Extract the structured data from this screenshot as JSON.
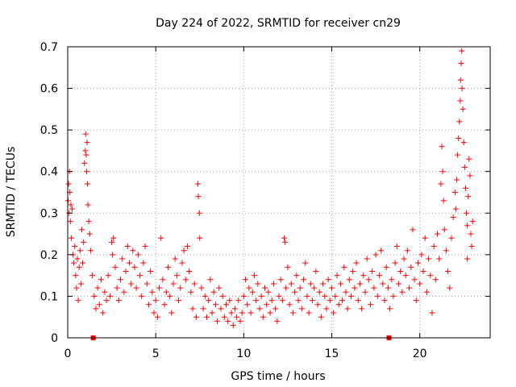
{
  "chart_data": {
    "type": "scatter",
    "title": "Day 224 of 2022, SRMTID for receiver cn29",
    "xlabel": "GPS time / hours",
    "ylabel": "SRMTID / TECUs",
    "xlim": [
      0,
      24
    ],
    "ylim": [
      0,
      0.7
    ],
    "x_ticks": [
      0,
      5,
      10,
      15,
      20
    ],
    "x_tick_labels": [
      "0",
      "5",
      "10",
      "15",
      "20"
    ],
    "y_ticks": [
      0,
      0.1,
      0.2,
      0.3,
      0.4,
      0.5,
      0.6,
      0.7
    ],
    "y_tick_labels": [
      "0",
      "0.1",
      "0.2",
      "0.3",
      "0.4",
      "0.5",
      "0.6",
      "0.7"
    ],
    "grid": true,
    "marker": "+",
    "series": [
      {
        "name": "SRMTID",
        "color": "#ff0000",
        "points": [
          [
            0.02,
            0.33
          ],
          [
            0.05,
            0.37
          ],
          [
            0.08,
            0.3
          ],
          [
            0.1,
            0.4
          ],
          [
            0.12,
            0.35
          ],
          [
            0.15,
            0.28
          ],
          [
            0.18,
            0.32
          ],
          [
            0.2,
            0.24
          ],
          [
            0.25,
            0.31
          ],
          [
            0.3,
            0.2
          ],
          [
            0.35,
            0.18
          ],
          [
            0.4,
            0.22
          ],
          [
            0.45,
            0.15
          ],
          [
            0.5,
            0.12
          ],
          [
            0.55,
            0.19
          ],
          [
            0.6,
            0.09
          ],
          [
            0.65,
            0.17
          ],
          [
            0.7,
            0.21
          ],
          [
            0.75,
            0.13
          ],
          [
            0.8,
            0.26
          ],
          [
            0.85,
            0.18
          ],
          [
            0.9,
            0.23
          ],
          [
            0.95,
            0.42
          ],
          [
            1.0,
            0.45
          ],
          [
            1.02,
            0.49
          ],
          [
            1.05,
            0.44
          ],
          [
            1.08,
            0.4
          ],
          [
            1.1,
            0.47
          ],
          [
            1.12,
            0.37
          ],
          [
            1.15,
            0.32
          ],
          [
            1.2,
            0.28
          ],
          [
            1.25,
            0.25
          ],
          [
            1.3,
            0.21
          ],
          [
            1.4,
            0.15
          ],
          [
            1.5,
            0.1
          ],
          [
            1.6,
            0.07
          ],
          [
            1.7,
            0.12
          ],
          [
            1.8,
            0.08
          ],
          [
            1.9,
            0.14
          ],
          [
            2.0,
            0.06
          ],
          [
            2.1,
            0.11
          ],
          [
            2.2,
            0.09
          ],
          [
            2.3,
            0.15
          ],
          [
            2.4,
            0.1
          ],
          [
            2.5,
            0.23
          ],
          [
            2.55,
            0.2
          ],
          [
            2.6,
            0.24
          ],
          [
            2.7,
            0.17
          ],
          [
            2.8,
            0.12
          ],
          [
            2.9,
            0.09
          ],
          [
            3.0,
            0.14
          ],
          [
            3.1,
            0.19
          ],
          [
            3.2,
            0.11
          ],
          [
            3.3,
            0.16
          ],
          [
            3.4,
            0.22
          ],
          [
            3.5,
            0.18
          ],
          [
            3.6,
            0.13
          ],
          [
            3.7,
            0.21
          ],
          [
            3.8,
            0.17
          ],
          [
            3.9,
            0.12
          ],
          [
            4.0,
            0.2
          ],
          [
            4.1,
            0.15
          ],
          [
            4.2,
            0.1
          ],
          [
            4.3,
            0.18
          ],
          [
            4.4,
            0.22
          ],
          [
            4.5,
            0.13
          ],
          [
            4.6,
            0.08
          ],
          [
            4.7,
            0.16
          ],
          [
            4.8,
            0.11
          ],
          [
            4.9,
            0.06
          ],
          [
            5.0,
            0.09
          ],
          [
            5.1,
            0.05
          ],
          [
            5.2,
            0.12
          ],
          [
            5.3,
            0.24
          ],
          [
            5.4,
            0.14
          ],
          [
            5.5,
            0.08
          ],
          [
            5.6,
            0.11
          ],
          [
            5.7,
            0.17
          ],
          [
            5.8,
            0.1
          ],
          [
            5.9,
            0.06
          ],
          [
            6.0,
            0.13
          ],
          [
            6.1,
            0.19
          ],
          [
            6.2,
            0.15
          ],
          [
            6.3,
            0.09
          ],
          [
            6.4,
            0.12
          ],
          [
            6.5,
            0.18
          ],
          [
            6.6,
            0.21
          ],
          [
            6.7,
            0.14
          ],
          [
            6.8,
            0.22
          ],
          [
            6.9,
            0.16
          ],
          [
            7.0,
            0.11
          ],
          [
            7.1,
            0.07
          ],
          [
            7.2,
            0.13
          ],
          [
            7.3,
            0.05
          ],
          [
            7.4,
            0.37
          ],
          [
            7.42,
            0.34
          ],
          [
            7.48,
            0.3
          ],
          [
            7.5,
            0.24
          ],
          [
            7.6,
            0.12
          ],
          [
            7.7,
            0.07
          ],
          [
            7.8,
            0.1
          ],
          [
            7.9,
            0.05
          ],
          [
            8.0,
            0.09
          ],
          [
            8.1,
            0.14
          ],
          [
            8.2,
            0.06
          ],
          [
            8.3,
            0.11
          ],
          [
            8.4,
            0.08
          ],
          [
            8.5,
            0.04
          ],
          [
            8.6,
            0.12
          ],
          [
            8.7,
            0.07
          ],
          [
            8.8,
            0.1
          ],
          [
            8.9,
            0.05
          ],
          [
            9.0,
            0.08
          ],
          [
            9.1,
            0.04
          ],
          [
            9.2,
            0.09
          ],
          [
            9.3,
            0.06
          ],
          [
            9.4,
            0.03
          ],
          [
            9.5,
            0.07
          ],
          [
            9.6,
            0.05
          ],
          [
            9.7,
            0.09
          ],
          [
            9.8,
            0.04
          ],
          [
            9.9,
            0.06
          ],
          [
            10.0,
            0.1
          ],
          [
            10.1,
            0.14
          ],
          [
            10.2,
            0.08
          ],
          [
            10.3,
            0.12
          ],
          [
            10.4,
            0.06
          ],
          [
            10.5,
            0.11
          ],
          [
            10.6,
            0.15
          ],
          [
            10.7,
            0.09
          ],
          [
            10.8,
            0.13
          ],
          [
            10.9,
            0.07
          ],
          [
            11.0,
            0.1
          ],
          [
            11.1,
            0.05
          ],
          [
            11.2,
            0.12
          ],
          [
            11.3,
            0.08
          ],
          [
            11.4,
            0.11
          ],
          [
            11.5,
            0.06
          ],
          [
            11.6,
            0.09
          ],
          [
            11.7,
            0.13
          ],
          [
            11.8,
            0.07
          ],
          [
            11.9,
            0.04
          ],
          [
            12.0,
            0.1
          ],
          [
            12.1,
            0.14
          ],
          [
            12.2,
            0.09
          ],
          [
            12.3,
            0.24
          ],
          [
            12.35,
            0.23
          ],
          [
            12.4,
            0.12
          ],
          [
            12.5,
            0.17
          ],
          [
            12.6,
            0.08
          ],
          [
            12.7,
            0.13
          ],
          [
            12.8,
            0.06
          ],
          [
            12.9,
            0.11
          ],
          [
            13.0,
            0.15
          ],
          [
            13.1,
            0.09
          ],
          [
            13.2,
            0.12
          ],
          [
            13.3,
            0.07
          ],
          [
            13.4,
            0.14
          ],
          [
            13.5,
            0.18
          ],
          [
            13.6,
            0.1
          ],
          [
            13.7,
            0.06
          ],
          [
            13.8,
            0.13
          ],
          [
            13.9,
            0.09
          ],
          [
            14.0,
            0.12
          ],
          [
            14.1,
            0.16
          ],
          [
            14.2,
            0.08
          ],
          [
            14.3,
            0.11
          ],
          [
            14.4,
            0.05
          ],
          [
            14.5,
            0.13
          ],
          [
            14.6,
            0.1
          ],
          [
            14.7,
            0.07
          ],
          [
            14.8,
            0.14
          ],
          [
            14.9,
            0.09
          ],
          [
            15.0,
            0.12
          ],
          [
            15.1,
            0.06
          ],
          [
            15.2,
            0.1
          ],
          [
            15.3,
            0.15
          ],
          [
            15.4,
            0.08
          ],
          [
            15.5,
            0.13
          ],
          [
            15.6,
            0.09
          ],
          [
            15.7,
            0.17
          ],
          [
            15.8,
            0.11
          ],
          [
            15.9,
            0.07
          ],
          [
            16.0,
            0.14
          ],
          [
            16.1,
            0.1
          ],
          [
            16.2,
            0.16
          ],
          [
            16.3,
            0.12
          ],
          [
            16.4,
            0.18
          ],
          [
            16.5,
            0.09
          ],
          [
            16.6,
            0.13
          ],
          [
            16.7,
            0.07
          ],
          [
            16.8,
            0.15
          ],
          [
            16.9,
            0.11
          ],
          [
            17.0,
            0.19
          ],
          [
            17.1,
            0.14
          ],
          [
            17.2,
            0.08
          ],
          [
            17.3,
            0.16
          ],
          [
            17.4,
            0.12
          ],
          [
            17.5,
            0.2
          ],
          [
            17.6,
            0.1
          ],
          [
            17.7,
            0.15
          ],
          [
            17.8,
            0.21
          ],
          [
            17.9,
            0.13
          ],
          [
            18.0,
            0.09
          ],
          [
            18.1,
            0.17
          ],
          [
            18.2,
            0.12
          ],
          [
            18.3,
            0.07
          ],
          [
            18.4,
            0.14
          ],
          [
            18.5,
            0.1
          ],
          [
            18.6,
            0.18
          ],
          [
            18.7,
            0.22
          ],
          [
            18.8,
            0.13
          ],
          [
            18.9,
            0.16
          ],
          [
            19.0,
            0.11
          ],
          [
            19.1,
            0.19
          ],
          [
            19.2,
            0.15
          ],
          [
            19.3,
            0.21
          ],
          [
            19.4,
            0.12
          ],
          [
            19.5,
            0.17
          ],
          [
            19.6,
            0.26
          ],
          [
            19.7,
            0.14
          ],
          [
            19.8,
            0.09
          ],
          [
            19.9,
            0.18
          ],
          [
            20.0,
            0.13
          ],
          [
            20.1,
            0.2
          ],
          [
            20.2,
            0.16
          ],
          [
            20.3,
            0.24
          ],
          [
            20.4,
            0.11
          ],
          [
            20.5,
            0.19
          ],
          [
            20.6,
            0.15
          ],
          [
            20.7,
            0.06
          ],
          [
            20.8,
            0.22
          ],
          [
            20.9,
            0.14
          ],
          [
            21.0,
            0.25
          ],
          [
            21.1,
            0.19
          ],
          [
            21.2,
            0.37
          ],
          [
            21.25,
            0.46
          ],
          [
            21.3,
            0.4
          ],
          [
            21.35,
            0.33
          ],
          [
            21.4,
            0.26
          ],
          [
            21.5,
            0.21
          ],
          [
            21.6,
            0.16
          ],
          [
            21.7,
            0.12
          ],
          [
            21.8,
            0.24
          ],
          [
            21.9,
            0.29
          ],
          [
            22.0,
            0.35
          ],
          [
            22.05,
            0.31
          ],
          [
            22.1,
            0.38
          ],
          [
            22.15,
            0.44
          ],
          [
            22.2,
            0.48
          ],
          [
            22.25,
            0.52
          ],
          [
            22.3,
            0.57
          ],
          [
            22.32,
            0.62
          ],
          [
            22.35,
            0.66
          ],
          [
            22.38,
            0.69
          ],
          [
            22.4,
            0.6
          ],
          [
            22.45,
            0.55
          ],
          [
            22.5,
            0.47
          ],
          [
            22.55,
            0.41
          ],
          [
            22.6,
            0.36
          ],
          [
            22.65,
            0.3
          ],
          [
            22.7,
            0.27
          ],
          [
            22.75,
            0.34
          ],
          [
            22.8,
            0.43
          ],
          [
            22.85,
            0.39
          ],
          [
            22.9,
            0.25
          ],
          [
            22.95,
            0.22
          ],
          [
            23.0,
            0.28
          ],
          [
            22.7,
            0.19
          ]
        ]
      },
      {
        "name": "markers",
        "color": "#ff0000",
        "marker": "square",
        "points": [
          [
            1.45,
            0.0
          ],
          [
            18.25,
            0.0
          ]
        ]
      }
    ]
  }
}
